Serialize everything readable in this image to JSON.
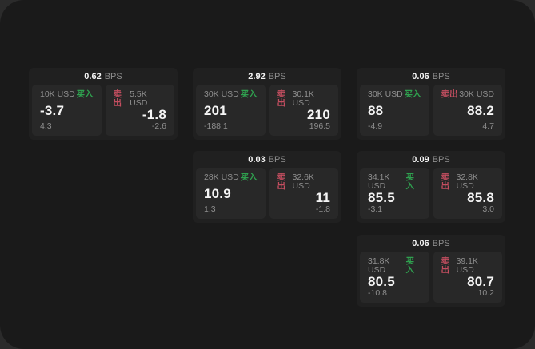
{
  "colors": {
    "page_bg": "#2b2b2b",
    "panel_bg": "#1a1a1a",
    "card_bg": "#202020",
    "subcard_bg": "#282828",
    "text_primary": "#f5f5f5",
    "text_secondary": "#8f8f8f",
    "buy_green": "#2fa14f",
    "sell_red": "#c44e60"
  },
  "labels": {
    "bps_unit": "BPS",
    "buy": "买入",
    "sell": "卖出"
  },
  "cards": [
    {
      "bps": "0.62",
      "col": 1,
      "row": 1,
      "buy": {
        "amount": "10K USD",
        "price": "-3.7",
        "delta": "4.3"
      },
      "sell": {
        "amount": "5.5K USD",
        "price": "-1.8",
        "delta": "-2.6"
      }
    },
    {
      "bps": "2.92",
      "col": 2,
      "row": 1,
      "buy": {
        "amount": "30K USD",
        "price": "201",
        "delta": "-188.1"
      },
      "sell": {
        "amount": "30.1K USD",
        "price": "210",
        "delta": "196.5"
      }
    },
    {
      "bps": "0.06",
      "col": 3,
      "row": 1,
      "buy": {
        "amount": "30K USD",
        "price": "88",
        "delta": "-4.9"
      },
      "sell": {
        "amount": "30K USD",
        "price": "88.2",
        "delta": "4.7"
      }
    },
    {
      "bps": "0.03",
      "col": 2,
      "row": 2,
      "buy": {
        "amount": "28K USD",
        "price": "10.9",
        "delta": "1.3"
      },
      "sell": {
        "amount": "32.6K USD",
        "price": "11",
        "delta": "-1.8"
      }
    },
    {
      "bps": "0.09",
      "col": 3,
      "row": 2,
      "buy": {
        "amount": "34.1K USD",
        "price": "85.5",
        "delta": "-3.1"
      },
      "sell": {
        "amount": "32.8K USD",
        "price": "85.8",
        "delta": "3.0"
      }
    },
    {
      "bps": "0.06",
      "col": 3,
      "row": 3,
      "buy": {
        "amount": "31.8K USD",
        "price": "80.5",
        "delta": "-10.8"
      },
      "sell": {
        "amount": "39.1K USD",
        "price": "80.7",
        "delta": "10.2"
      }
    }
  ]
}
